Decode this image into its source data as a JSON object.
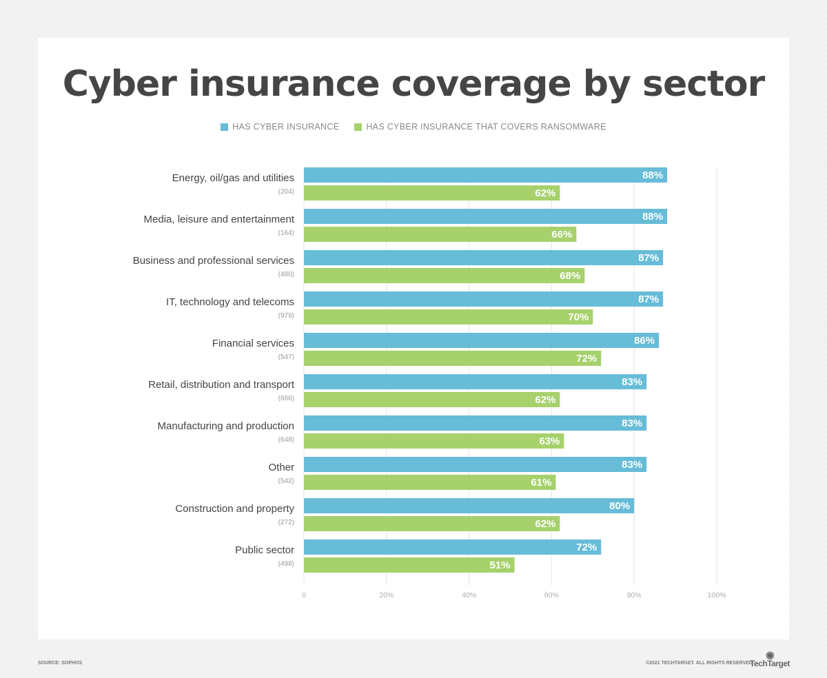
{
  "title": "Cyber insurance coverage by sector",
  "footer": {
    "source": "SOURCE: SOPHOS",
    "copyright": "©2021 TECHTARGET. ALL RIGHTS RESERVED",
    "logo": "TechTarget"
  },
  "colors": {
    "series1": "#67bcd7",
    "series2": "#a6d16b"
  },
  "chart_data": {
    "type": "bar",
    "orientation": "horizontal",
    "title": "Cyber insurance coverage by sector",
    "categories": [
      "Energy, oil/gas and utilities",
      "Media, leisure and entertainment",
      "Business and professional services",
      "IT, technology and telecoms",
      "Financial services",
      "Retail, distribution and transport",
      "Manufacturing and production",
      "Other",
      "Construction and property",
      "Public sector"
    ],
    "sample_sizes": [
      "(204)",
      "(164)",
      "(480)",
      "(979)",
      "(547)",
      "(666)",
      "(648)",
      "(542)",
      "(272)",
      "(498)"
    ],
    "series": [
      {
        "name": "HAS CYBER INSURANCE",
        "values": [
          88,
          88,
          87,
          87,
          86,
          83,
          83,
          83,
          80,
          72
        ]
      },
      {
        "name": "HAS CYBER INSURANCE THAT COVERS RANSOMWARE",
        "values": [
          62,
          66,
          68,
          70,
          72,
          62,
          63,
          61,
          62,
          51
        ]
      }
    ],
    "xlim": [
      0,
      100
    ],
    "xticks": [
      "0",
      "20%",
      "40%",
      "60%",
      "80%",
      "100%"
    ],
    "grid": true,
    "legend": "top-center"
  }
}
